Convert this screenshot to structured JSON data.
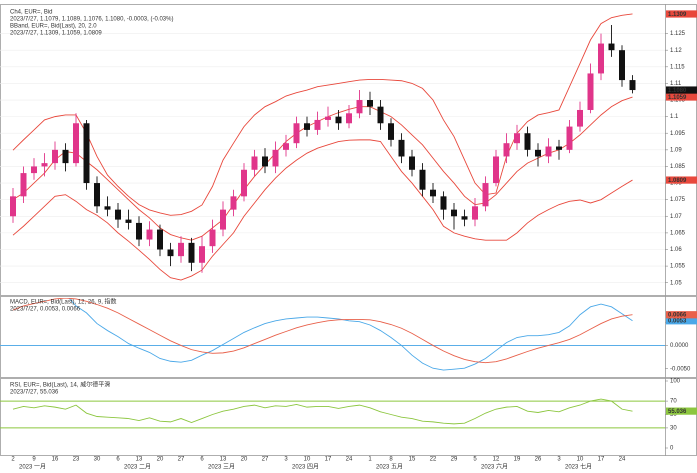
{
  "chart_data": [
    {
      "type": "candlestick",
      "title": "Ch4, EUR=, Bid",
      "subtitle": "2023/7/27, 1.1079, 1.1089, 1.1076, 1.1080, -0.0003, (-0.03%)",
      "categories": [
        "2",
        null,
        "9",
        null,
        "16",
        null,
        "23",
        null,
        "30",
        null,
        "6",
        null,
        "13",
        null,
        "20",
        null,
        "27",
        null,
        "6",
        null,
        "13",
        null,
        "20",
        null,
        "27",
        null,
        "3",
        null,
        "10",
        null,
        "17",
        null,
        "24",
        null,
        "1",
        null,
        "8",
        null,
        "15",
        null,
        "22",
        null,
        "29",
        null,
        "5",
        null,
        "12",
        null,
        "19",
        null,
        "26",
        null,
        "3",
        null,
        "10",
        null,
        "17",
        null,
        "24",
        null
      ],
      "category_months": [
        "2023 一月",
        null,
        null,
        null,
        null,
        null,
        null,
        null,
        null,
        null,
        "2023 二月",
        null,
        null,
        null,
        null,
        null,
        null,
        null,
        "2023 三月",
        null,
        null,
        null,
        null,
        null,
        null,
        null,
        "2023 四月",
        null,
        null,
        null,
        null,
        null,
        null,
        null,
        "2023 五月",
        null,
        null,
        null,
        null,
        null,
        null,
        null,
        null,
        null,
        "2023 六月",
        null,
        null,
        null,
        null,
        null,
        null,
        null,
        "2023 七月",
        null,
        null,
        null,
        null,
        null,
        null,
        null
      ],
      "open": [
        1.07,
        1.076,
        1.083,
        1.085,
        1.086,
        1.09,
        1.086,
        1.098,
        1.08,
        1.073,
        1.072,
        1.069,
        1.068,
        1.063,
        1.066,
        1.06,
        1.058,
        1.062,
        1.056,
        1.061,
        1.066,
        1.072,
        1.076,
        1.084,
        1.088,
        1.085,
        1.09,
        1.092,
        1.098,
        1.096,
        1.099,
        1.1,
        1.098,
        1.101,
        1.105,
        1.103,
        1.098,
        1.093,
        1.088,
        1.084,
        1.078,
        1.076,
        1.072,
        1.07,
        1.069,
        1.073,
        1.08,
        1.088,
        1.092,
        1.095,
        1.09,
        1.088,
        1.091,
        1.09,
        1.097,
        1.102,
        1.113,
        1.122,
        1.12,
        1.111
      ],
      "high": [
        1.0785,
        1.085,
        1.0875,
        1.089,
        1.0925,
        1.092,
        1.101,
        1.099,
        1.082,
        1.076,
        1.074,
        1.072,
        1.07,
        1.0685,
        1.0675,
        1.062,
        1.064,
        1.0635,
        1.064,
        1.069,
        1.0745,
        1.078,
        1.086,
        1.09,
        1.0905,
        1.0925,
        1.0945,
        1.1,
        1.1,
        1.1015,
        1.103,
        1.102,
        1.1035,
        1.108,
        1.1075,
        1.105,
        1.0995,
        1.095,
        1.09,
        1.086,
        1.08,
        1.0775,
        1.074,
        1.072,
        1.0755,
        1.082,
        1.09,
        1.095,
        1.0975,
        1.097,
        1.092,
        1.0935,
        1.093,
        1.099,
        1.1045,
        1.116,
        1.125,
        1.1276,
        1.1215,
        1.1125
      ],
      "low": [
        1.068,
        1.074,
        1.081,
        1.082,
        1.084,
        1.0835,
        1.085,
        1.078,
        1.071,
        1.07,
        1.0665,
        1.066,
        1.061,
        1.061,
        1.058,
        1.055,
        1.056,
        1.0535,
        1.053,
        1.059,
        1.064,
        1.07,
        1.0745,
        1.082,
        1.083,
        1.083,
        1.088,
        1.0905,
        1.094,
        1.0945,
        1.097,
        1.096,
        1.0965,
        1.0995,
        1.1005,
        1.096,
        1.091,
        1.086,
        1.082,
        1.076,
        1.074,
        1.069,
        1.066,
        1.067,
        1.067,
        1.0715,
        1.079,
        1.086,
        1.09,
        1.088,
        1.085,
        1.086,
        1.087,
        1.089,
        1.0955,
        1.101,
        1.111,
        1.118,
        1.109,
        1.107
      ],
      "close": [
        1.076,
        1.083,
        1.085,
        1.086,
        1.09,
        1.086,
        1.098,
        1.08,
        1.073,
        1.072,
        1.069,
        1.068,
        1.063,
        1.066,
        1.06,
        1.058,
        1.062,
        1.056,
        1.061,
        1.066,
        1.072,
        1.076,
        1.084,
        1.088,
        1.085,
        1.09,
        1.092,
        1.098,
        1.096,
        1.099,
        1.1,
        1.098,
        1.101,
        1.105,
        1.103,
        1.098,
        1.093,
        1.088,
        1.084,
        1.078,
        1.076,
        1.072,
        1.07,
        1.069,
        1.073,
        1.08,
        1.088,
        1.092,
        1.095,
        1.09,
        1.088,
        1.091,
        1.09,
        1.097,
        1.102,
        1.113,
        1.122,
        1.12,
        1.111,
        1.108
      ],
      "up_color": "#e0358a",
      "down_color": "#111111",
      "last_label": "1.1080",
      "ylim": [
        1.0463,
        1.1327
      ],
      "yticks": [
        1.05,
        1.055,
        1.06,
        1.065,
        1.07,
        1.075,
        1.08,
        1.085,
        1.09,
        1.095,
        1.1,
        1.105,
        1.11,
        1.115,
        1.12,
        1.125
      ],
      "grid": true,
      "bands": {
        "title": "BBand, EUR=, Bid(Last), 20, 2.0",
        "subtitle": "2023/7/27, 1.1309, 1.1059, 1.0809",
        "color": "#e8483c",
        "series": [
          {
            "values": [
              1.0899,
              1.093,
              1.096,
              1.099,
              1.1,
              1.1005,
              1.1005,
              1.095,
              1.088,
              1.0824,
              1.079,
              1.076,
              1.0735,
              1.0719,
              1.071,
              1.0703,
              1.0705,
              1.0715,
              1.0734,
              1.079,
              1.0869,
              1.092,
              1.097,
              1.1005,
              1.103,
              1.1045,
              1.1062,
              1.1072,
              1.108,
              1.109,
              1.1095,
              1.11,
              1.1105,
              1.111,
              1.1112,
              1.1112,
              1.111,
              1.1108,
              1.11,
              1.1085,
              1.105,
              1.099,
              1.094,
              1.087,
              1.08,
              1.0765,
              1.077,
              1.088,
              1.095,
              1.0985,
              1.1005,
              1.1012,
              1.102,
              1.109,
              1.116,
              1.1231,
              1.128,
              1.1298,
              1.1305,
              1.1309
            ],
            "last_label": "1.1309"
          },
          {
            "values": [
              1.075,
              1.077,
              1.08,
              1.083,
              1.087,
              1.0895,
              1.089,
              1.0865,
              1.084,
              1.081,
              1.078,
              1.075,
              1.072,
              1.0695,
              1.0665,
              1.0645,
              1.0635,
              1.0628,
              1.064,
              1.0665,
              1.069,
              1.0735,
              1.078,
              1.082,
              1.0855,
              1.089,
              1.0925,
              1.095,
              1.097,
              1.0985,
              1.1,
              1.1012,
              1.1022,
              1.103,
              1.103,
              1.1015,
              1.1,
              1.0975,
              1.0945,
              1.0915,
              1.0875,
              1.0835,
              1.08,
              1.076,
              1.0735,
              1.074,
              1.0765,
              1.08,
              1.0835,
              1.086,
              1.0875,
              1.089,
              1.09,
              1.092,
              1.0945,
              1.0975,
              1.1005,
              1.103,
              1.1048,
              1.1059
            ],
            "last_label": "1.1059"
          },
          {
            "values": [
              1.0643,
              1.067,
              1.07,
              1.073,
              1.076,
              1.0765,
              1.0745,
              1.072,
              1.0703,
              1.068,
              1.065,
              1.0625,
              1.0598,
              1.057,
              1.054,
              1.0515,
              1.0508,
              1.052,
              1.0538,
              1.058,
              1.0615,
              1.065,
              1.07,
              1.074,
              1.078,
              1.0815,
              1.0845,
              1.0869,
              1.089,
              1.0905,
              1.0915,
              1.0925,
              1.0929,
              1.093,
              1.093,
              1.0925,
              1.088,
              1.0835,
              1.08,
              1.076,
              1.072,
              1.067,
              1.065,
              1.064,
              1.0632,
              1.0628,
              1.0628,
              1.0628,
              1.065,
              1.068,
              1.0703,
              1.072,
              1.0735,
              1.0745,
              1.0749,
              1.074,
              1.075,
              1.077,
              1.079,
              1.0809
            ],
            "last_label": "1.0809"
          }
        ]
      }
    },
    {
      "type": "line",
      "title": "MACD, EUR=, Bid(Last), 12, 26, 9, 指数",
      "subtitle": "2023/7/27, 0.0053, 0.0066",
      "title_color": "#3a8fd6",
      "series": [
        {
          "color": "#4aa8e8",
          "last_label": "0.0053",
          "values": [
            0.0125,
            0.0128,
            0.013,
            0.0125,
            0.0118,
            0.011,
            0.0085,
            0.007,
            0.0047,
            0.0032,
            0.0019,
            0.0004,
            -0.0006,
            -0.0015,
            -0.0028,
            -0.0034,
            -0.0036,
            -0.0032,
            -0.0021,
            -0.0011,
            0.0002,
            0.0015,
            0.0028,
            0.0038,
            0.0047,
            0.0053,
            0.0057,
            0.0059,
            0.0061,
            0.0061,
            0.0059,
            0.0057,
            0.0053,
            0.0051,
            0.0044,
            0.0032,
            0.0017,
            0.0,
            -0.0021,
            -0.0038,
            -0.0049,
            -0.0053,
            -0.0051,
            -0.0049,
            -0.004,
            -0.0028,
            -0.0011,
            0.0006,
            0.0017,
            0.0021,
            0.0021,
            0.0023,
            0.0028,
            0.0042,
            0.0066,
            0.0083,
            0.0089,
            0.0083,
            0.0068,
            0.0053
          ]
        },
        {
          "color": "#e8604a",
          "last_label": "0.0066",
          "values": [
            0.0076,
            0.0085,
            0.009,
            0.0095,
            0.01,
            0.0102,
            0.01,
            0.0095,
            0.0088,
            0.008,
            0.007,
            0.0058,
            0.0046,
            0.0034,
            0.0022,
            0.001,
            0.0,
            -0.0009,
            -0.0014,
            -0.0017,
            -0.0016,
            -0.0012,
            -0.0005,
            0.0004,
            0.0013,
            0.0022,
            0.003,
            0.0038,
            0.0044,
            0.0049,
            0.0053,
            0.0055,
            0.0056,
            0.0056,
            0.0055,
            0.0051,
            0.0045,
            0.0037,
            0.0026,
            0.0013,
            0.0,
            -0.0012,
            -0.0022,
            -0.003,
            -0.0035,
            -0.0037,
            -0.0035,
            -0.0029,
            -0.0021,
            -0.0013,
            -0.0006,
            0.0,
            0.0006,
            0.0013,
            0.0023,
            0.0035,
            0.0047,
            0.0057,
            0.0063,
            0.0066
          ]
        }
      ],
      "ylim": [
        -0.007,
        0.0102
      ],
      "yticks": [
        {
          "value": -0.005,
          "label": "-0.0050"
        },
        {
          "value": 0,
          "label": "0.0000"
        },
        {
          "value": 0.005,
          "label": "0.0050"
        }
      ],
      "baseline": 0,
      "baseline_color": "#5aaee8"
    },
    {
      "type": "line",
      "title": "RSI, EUR=, Bid(Last), 14, 威尔德平滑",
      "subtitle": "2023/7/27, 55.036",
      "title_color": "#6aa82e",
      "series": [
        {
          "color": "#8cc63f",
          "last_label": "55.036",
          "values": [
            58,
            62,
            60,
            63,
            61,
            58,
            64,
            52,
            47,
            46,
            45,
            44,
            41,
            45,
            40,
            39,
            44,
            38,
            44,
            50,
            55,
            58,
            62,
            64,
            60,
            63,
            62,
            65,
            61,
            62,
            62,
            59,
            62,
            64,
            60,
            54,
            50,
            46,
            44,
            40,
            39,
            37,
            36,
            37,
            44,
            52,
            58,
            61,
            62,
            55,
            53,
            56,
            54,
            60,
            64,
            70,
            73,
            70,
            58,
            55.036
          ]
        }
      ],
      "ylim": [
        0,
        100
      ],
      "yticks": [
        0,
        30,
        50,
        70,
        100
      ],
      "levels": [
        70,
        30
      ],
      "level_color": "#8cc63f"
    }
  ]
}
